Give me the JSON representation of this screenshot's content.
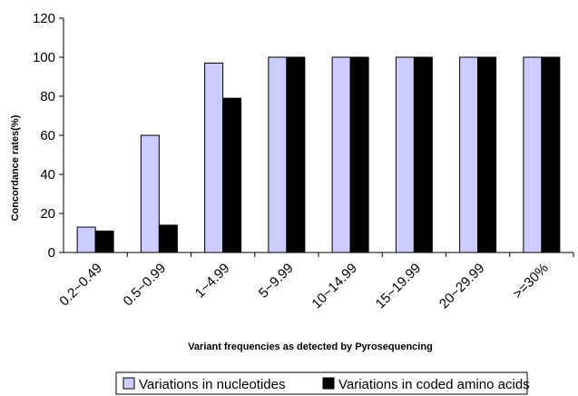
{
  "chart_data": {
    "type": "bar",
    "categories": [
      "0.2~0.49",
      "0.5~0.99",
      "1~4.99",
      "5~9.99",
      "10~14.99",
      "15~19.99",
      "20~29.99",
      ">=30%"
    ],
    "series": [
      {
        "name": "Variations in nucleotides",
        "color": "#ccccff",
        "values": [
          13,
          60,
          97,
          100,
          100,
          100,
          100,
          100
        ]
      },
      {
        "name": "Variations in coded amino acids",
        "color": "#000000",
        "values": [
          11,
          14,
          79,
          100,
          100,
          100,
          100,
          100
        ]
      }
    ],
    "xlabel": "Variant frequencies as detected by Pyrosequencing",
    "ylabel": "Concordance rates(%)",
    "ylim": [
      0,
      120
    ],
    "yticks": [
      0,
      20,
      40,
      60,
      80,
      100,
      120
    ],
    "grid": false,
    "legend_position": "bottom"
  }
}
